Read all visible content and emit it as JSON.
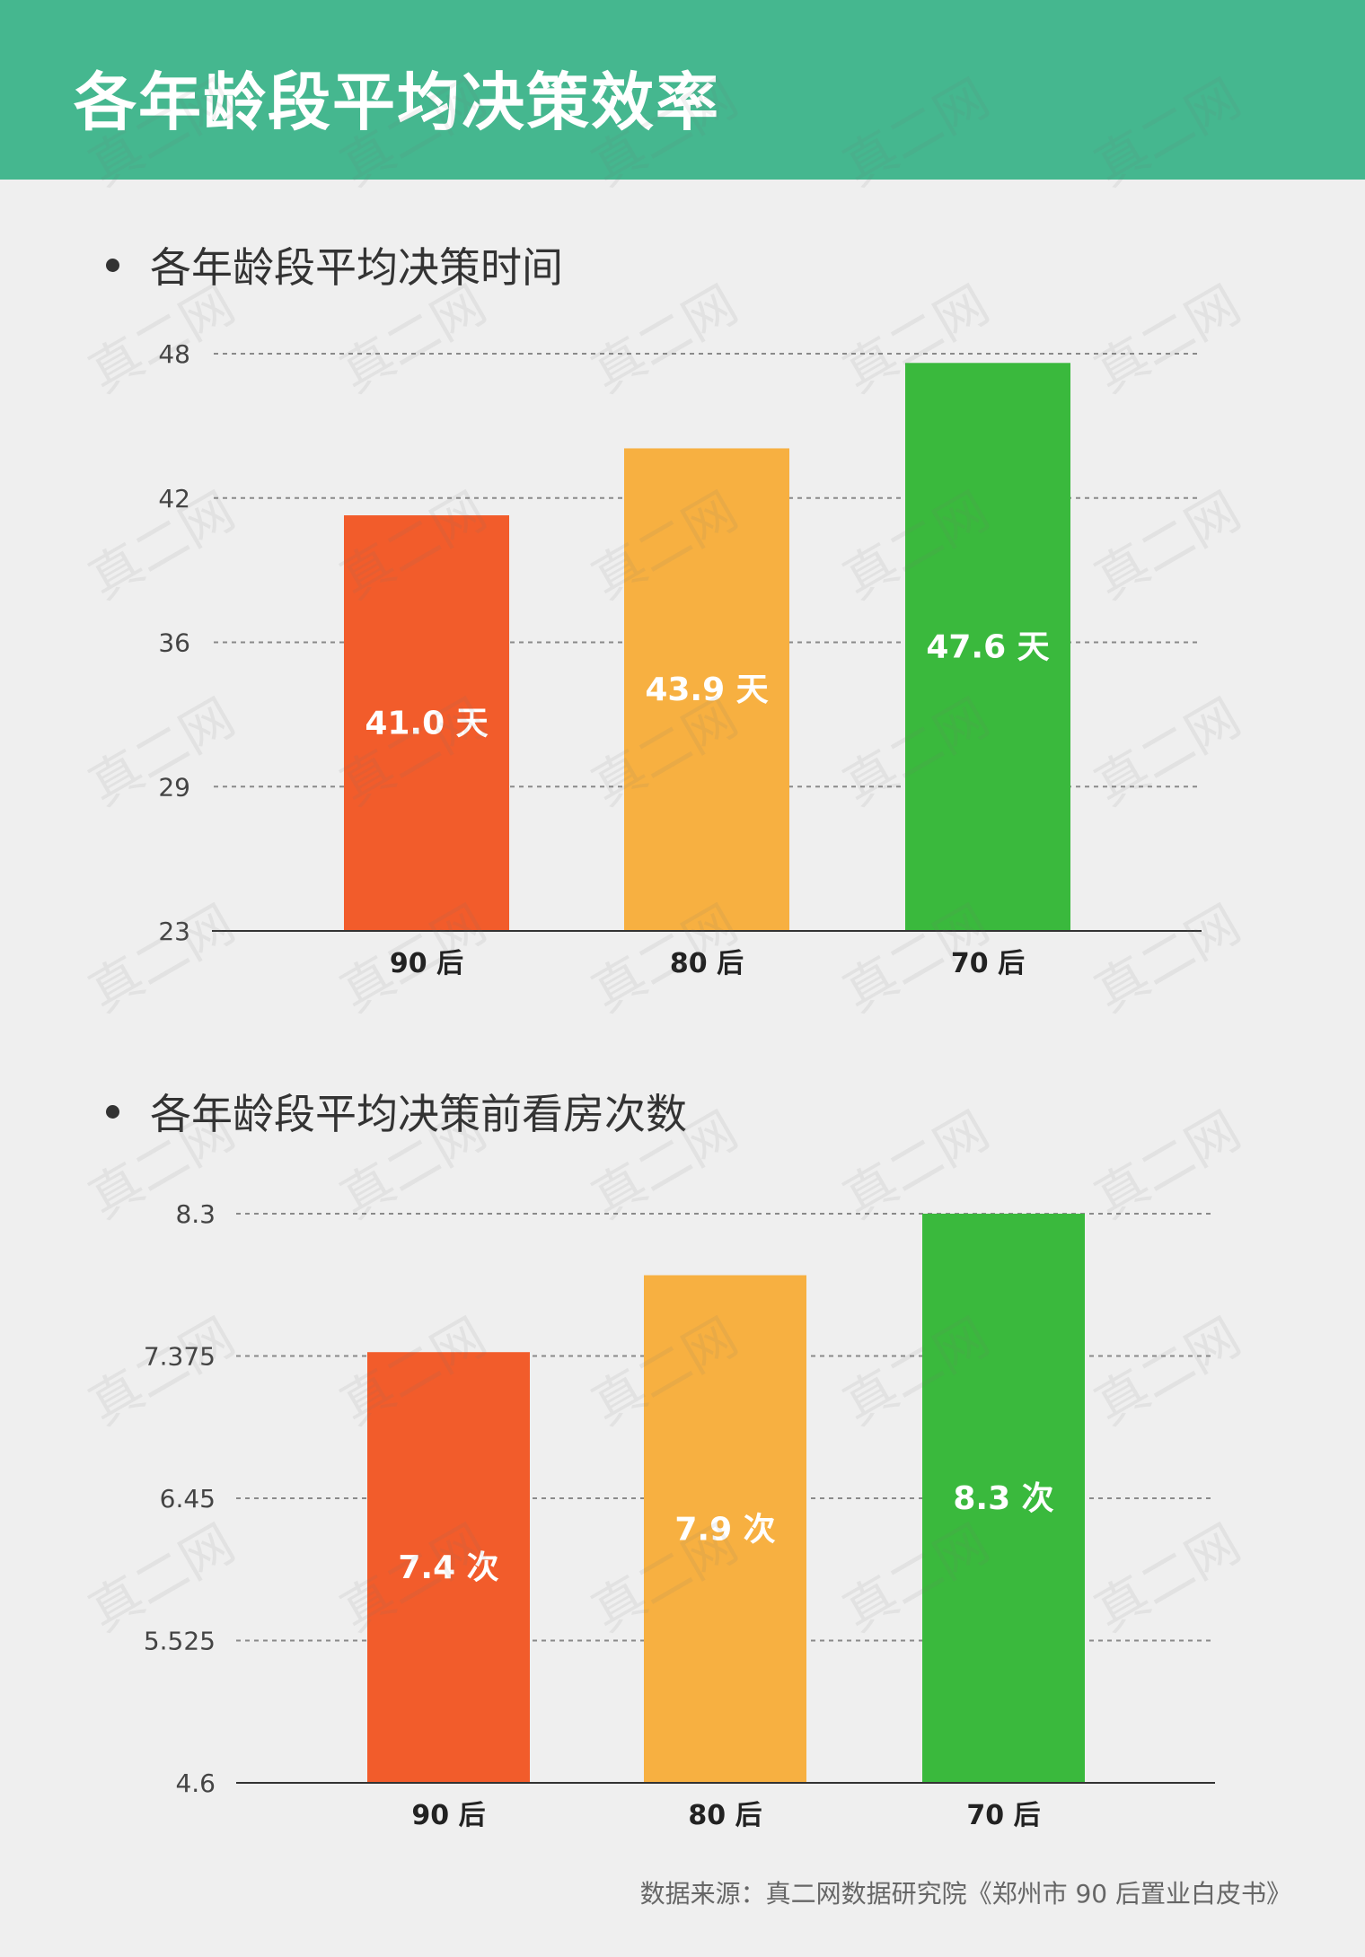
{
  "header": {
    "title": "各年龄段平均决策效率"
  },
  "colors": {
    "header_bg": "#45b78f",
    "bar_90": "#f25c2b",
    "bar_80": "#f7b041",
    "bar_70": "#3ab93d"
  },
  "watermark_text": "真二网",
  "source": "数据来源：真二网数据研究院《郑州市 90 后置业白皮书》",
  "chart_data": [
    {
      "type": "bar",
      "title": "各年龄段平均决策时间",
      "categories": [
        "90 后",
        "80 后",
        "70 后"
      ],
      "values": [
        41.0,
        43.9,
        47.6
      ],
      "value_labels": [
        "41.0 天",
        "43.9 天",
        "47.6 天"
      ],
      "yticks": [
        "23",
        "29",
        "36",
        "42",
        "48"
      ],
      "ylim": [
        23,
        48
      ],
      "grid": true
    },
    {
      "type": "bar",
      "title": "各年龄段平均决策前看房次数",
      "categories": [
        "90 后",
        "80 后",
        "70 后"
      ],
      "values": [
        7.4,
        7.9,
        8.3
      ],
      "value_labels": [
        "7.4 次",
        "7.9 次",
        "8.3 次"
      ],
      "yticks": [
        "4.6",
        "5.525",
        "6.45",
        "7.375",
        "8.3"
      ],
      "ylim": [
        4.6,
        8.3
      ],
      "grid": true
    }
  ]
}
